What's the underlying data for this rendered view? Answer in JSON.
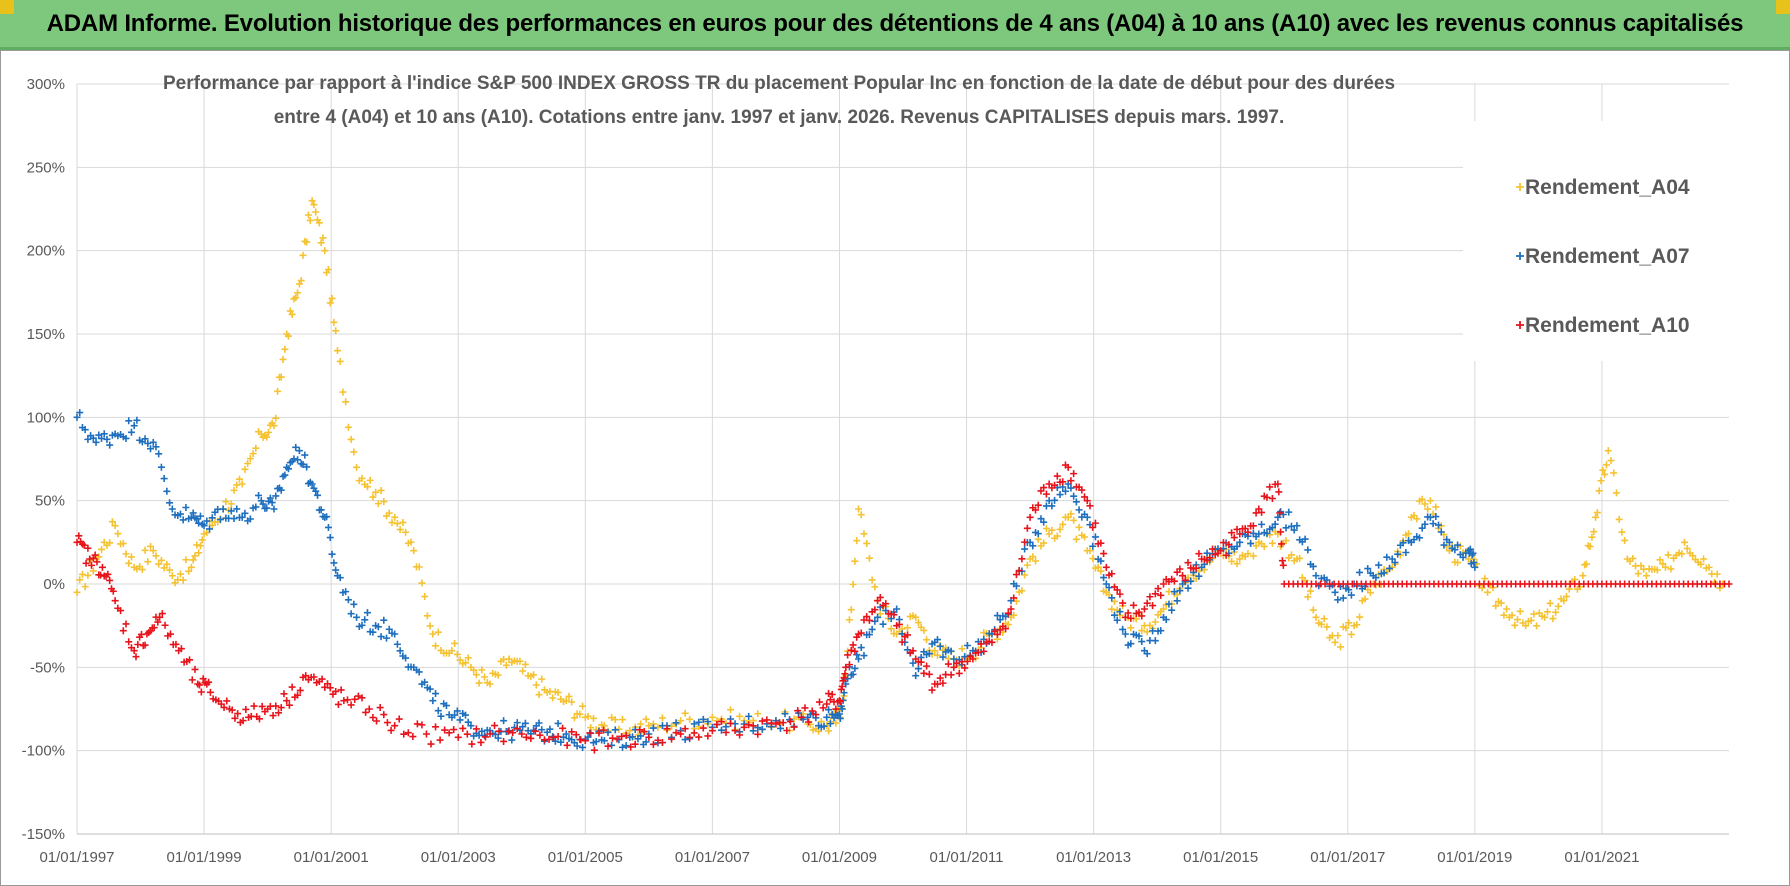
{
  "banner": {
    "title": "ADAM Informe. Evolution historique des performances en euros pour des détentions de 4 ans (A04) à 10 ans (A10) avec les revenus connus capitalisés"
  },
  "colors": {
    "banner_bg": "#7ec87e",
    "corner": "#e8c21a",
    "series_a04": "#f5c231",
    "series_a07": "#1f6fbf",
    "series_a10": "#e8141c",
    "grid": "#d9d9d9",
    "text": "#595959"
  },
  "chart_data": {
    "type": "scatter",
    "title_line1": "Performance par rapport à l'indice S&P 500 INDEX GROSS TR  du placement Popular Inc en fonction de la date de début pour des durées",
    "title_line2": "entre 4 (A04) et 10 ans (A10). Cotations entre janv. 1997 et janv. 2026. Revenus CAPITALISES depuis mars. 1997.",
    "xlabel": "",
    "ylabel": "",
    "x_range": [
      1997.0,
      2023.0
    ],
    "ylim": [
      -150,
      300
    ],
    "y_ticks": [
      300,
      250,
      200,
      150,
      100,
      50,
      0,
      -50,
      -100,
      -150
    ],
    "y_tick_labels": [
      "300%",
      "250%",
      "200%",
      "150%",
      "100%",
      "50%",
      "0%",
      "-50%",
      "-100%",
      "-150%"
    ],
    "x_ticks": [
      1997,
      1999,
      2001,
      2003,
      2005,
      2007,
      2009,
      2011,
      2013,
      2015,
      2017,
      2019,
      2021
    ],
    "x_tick_labels": [
      "01/01/1997",
      "01/01/1999",
      "01/01/2001",
      "01/01/2003",
      "01/01/2005",
      "01/01/2007",
      "01/01/2009",
      "01/01/2011",
      "01/01/2013",
      "01/01/2015",
      "01/01/2017",
      "01/01/2019",
      "01/01/2021"
    ],
    "grid": true,
    "legend_position": "top-right",
    "marker": "+",
    "series": [
      {
        "name": "Rendement_A04",
        "x": [
          1997.0,
          1997.3,
          1997.6,
          1997.9,
          1998.2,
          1998.5,
          1998.8,
          1999.0,
          1999.3,
          1999.6,
          1999.9,
          2000.1,
          2000.3,
          2000.5,
          2000.7,
          2000.9,
          2001.1,
          2001.4,
          2001.7,
          2002.0,
          2002.3,
          2002.6,
          2002.9,
          2003.2,
          2003.5,
          2003.8,
          2004.1,
          2004.4,
          2004.7,
          2005.0,
          2005.3,
          2005.7,
          2006.0,
          2006.5,
          2007.0,
          2007.5,
          2008.0,
          2008.5,
          2008.8,
          2009.0,
          2009.1,
          2009.3,
          2009.6,
          2009.9,
          2010.2,
          2010.5,
          2010.8,
          2011.1,
          2011.4,
          2011.7,
          2012.0,
          2012.3,
          2012.6,
          2012.9,
          2013.2,
          2013.5,
          2013.8,
          2014.1,
          2014.4,
          2014.7,
          2015.0,
          2015.3,
          2015.6,
          2015.9,
          2016.2,
          2016.5,
          2016.8,
          2017.1,
          2017.4,
          2017.7,
          2018.0,
          2018.3,
          2018.6,
          2018.9,
          2019.2,
          2019.5,
          2019.8,
          2020.1,
          2020.4,
          2020.7,
          2020.9,
          2021.1,
          2021.4,
          2021.7,
          2022.0,
          2022.3,
          2022.6,
          2022.9
        ],
        "y": [
          -5,
          15,
          35,
          10,
          20,
          5,
          10,
          30,
          45,
          60,
          90,
          95,
          150,
          180,
          230,
          200,
          140,
          70,
          55,
          40,
          20,
          -30,
          -40,
          -50,
          -60,
          -45,
          -55,
          -65,
          -70,
          -80,
          -85,
          -88,
          -85,
          -82,
          -80,
          -82,
          -82,
          -84,
          -85,
          -80,
          -55,
          45,
          -10,
          -30,
          -20,
          -40,
          -45,
          -40,
          -30,
          -20,
          15,
          30,
          40,
          20,
          -5,
          -20,
          -25,
          -15,
          5,
          10,
          20,
          15,
          25,
          30,
          15,
          -20,
          -35,
          -25,
          0,
          10,
          40,
          50,
          20,
          15,
          -5,
          -15,
          -25,
          -20,
          -10,
          5,
          40,
          80,
          15,
          5,
          10,
          25,
          15,
          0
        ]
      },
      {
        "name": "Rendement_A07",
        "x": [
          1997.0,
          1997.3,
          1997.6,
          1997.9,
          1998.2,
          1998.5,
          1998.8,
          1999.0,
          1999.3,
          1999.6,
          1999.9,
          2000.1,
          2000.3,
          2000.5,
          2000.7,
          2000.9,
          2001.1,
          2001.4,
          2001.7,
          2002.0,
          2002.3,
          2002.6,
          2002.9,
          2003.2,
          2003.5,
          2003.8,
          2004.1,
          2004.4,
          2004.7,
          2005.0,
          2005.3,
          2005.7,
          2006.0,
          2006.5,
          2007.0,
          2007.5,
          2008.0,
          2008.5,
          2008.8,
          2009.0,
          2009.1,
          2009.3,
          2009.6,
          2009.9,
          2010.2,
          2010.5,
          2010.8,
          2011.1,
          2011.4,
          2011.7,
          2012.0,
          2012.3,
          2012.6,
          2012.9,
          2013.2,
          2013.5,
          2013.8,
          2014.1,
          2014.4,
          2014.7,
          2015.0,
          2015.3,
          2015.6,
          2015.9,
          2016.2,
          2016.5,
          2016.8,
          2017.1,
          2017.4,
          2017.7,
          2018.0,
          2018.3,
          2018.6,
          2018.9,
          2019.0
        ],
        "y": [
          100,
          85,
          90,
          95,
          85,
          45,
          40,
          35,
          45,
          40,
          50,
          45,
          70,
          80,
          60,
          40,
          5,
          -20,
          -25,
          -30,
          -50,
          -70,
          -80,
          -85,
          -88,
          -88,
          -88,
          -89,
          -90,
          -93,
          -94,
          -92,
          -90,
          -88,
          -86,
          -84,
          -82,
          -80,
          -80,
          -78,
          -60,
          -45,
          -20,
          -15,
          -55,
          -35,
          -45,
          -40,
          -30,
          -10,
          25,
          50,
          60,
          40,
          0,
          -30,
          -40,
          -20,
          0,
          10,
          20,
          25,
          30,
          40,
          35,
          5,
          -5,
          0,
          5,
          15,
          25,
          40,
          25,
          20,
          10
        ]
      },
      {
        "name": "Rendement_A10",
        "x": [
          1997.0,
          1997.2,
          1997.4,
          1997.6,
          1997.9,
          1998.1,
          1998.3,
          1998.6,
          1998.9,
          1999.1,
          1999.4,
          1999.7,
          2000.0,
          2000.3,
          2000.6,
          2000.9,
          2001.2,
          2001.6,
          2002.0,
          2002.5,
          2003.0,
          2003.5,
          2004.0,
          2004.5,
          2005.0,
          2005.5,
          2006.0,
          2006.5,
          2007.0,
          2007.5,
          2008.0,
          2008.4,
          2008.8,
          2009.0,
          2009.1,
          2009.3,
          2009.6,
          2009.9,
          2010.2,
          2010.5,
          2010.8,
          2011.1,
          2011.4,
          2011.7,
          2012.0,
          2012.3,
          2012.6,
          2012.9,
          2013.2,
          2013.5,
          2013.8,
          2014.1,
          2014.4,
          2014.7,
          2015.0,
          2015.3,
          2015.6,
          2015.9,
          2016.0,
          2016.5,
          2017.0,
          2017.5,
          2018.0,
          2018.5,
          2019.0,
          2019.5,
          2020.0,
          2020.5,
          2021.0,
          2021.5,
          2022.0,
          2022.5,
          2023.0
        ],
        "y": [
          25,
          15,
          10,
          -10,
          -40,
          -30,
          -20,
          -40,
          -60,
          -65,
          -75,
          -80,
          -75,
          -70,
          -55,
          -62,
          -70,
          -75,
          -85,
          -90,
          -92,
          -90,
          -90,
          -92,
          -94,
          -93,
          -92,
          -90,
          -88,
          -86,
          -84,
          -80,
          -72,
          -70,
          -50,
          -30,
          -10,
          -25,
          -45,
          -60,
          -50,
          -45,
          -35,
          -15,
          40,
          60,
          70,
          50,
          10,
          -20,
          -15,
          0,
          5,
          15,
          20,
          30,
          45,
          60,
          0,
          0,
          0,
          0,
          0,
          0,
          0,
          0,
          0,
          0,
          0,
          0,
          0,
          0,
          0
        ]
      }
    ]
  }
}
